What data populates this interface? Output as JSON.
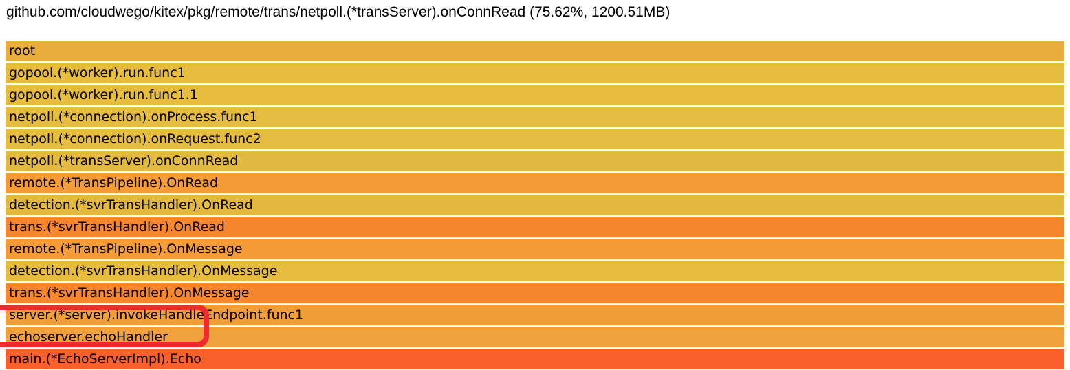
{
  "header": {
    "title": "github.com/cloudwego/kitex/pkg/remote/trans/netpoll.(*transServer).onConnRead (75.62%, 1200.51MB)"
  },
  "flamegraph": {
    "frames": [
      {
        "label": "root",
        "color": "#E9AE3B"
      },
      {
        "label": "gopool.(*worker).run.func1",
        "color": "#E5BC3E"
      },
      {
        "label": "gopool.(*worker).run.func1.1",
        "color": "#E5BC3E"
      },
      {
        "label": "netpoll.(*connection).onProcess.func1",
        "color": "#E4BC40"
      },
      {
        "label": "netpoll.(*connection).onRequest.func2",
        "color": "#E4BC40"
      },
      {
        "label": "netpoll.(*transServer).onConnRead",
        "color": "#E2BA42"
      },
      {
        "label": "remote.(*TransPipeline).OnRead",
        "color": "#F49C38"
      },
      {
        "label": "detection.(*svrTransHandler).OnRead",
        "color": "#E2B93E"
      },
      {
        "label": "trans.(*svrTransHandler).OnRead",
        "color": "#F7872E"
      },
      {
        "label": "remote.(*TransPipeline).OnMessage",
        "color": "#F49C38"
      },
      {
        "label": "detection.(*svrTransHandler).OnMessage",
        "color": "#E5BC3E"
      },
      {
        "label": "trans.(*svrTransHandler).OnMessage",
        "color": "#F7872E"
      },
      {
        "label": "server.(*server).invokeHandleEndpoint.func1",
        "color": "#F09E3A"
      },
      {
        "label": "echoserver.echoHandler",
        "color": "#F0A03C"
      },
      {
        "label": "main.(*EchoServerImpl).Echo",
        "color": "#F9602B"
      }
    ]
  },
  "annotation": {
    "color": "#EE2B2E"
  }
}
